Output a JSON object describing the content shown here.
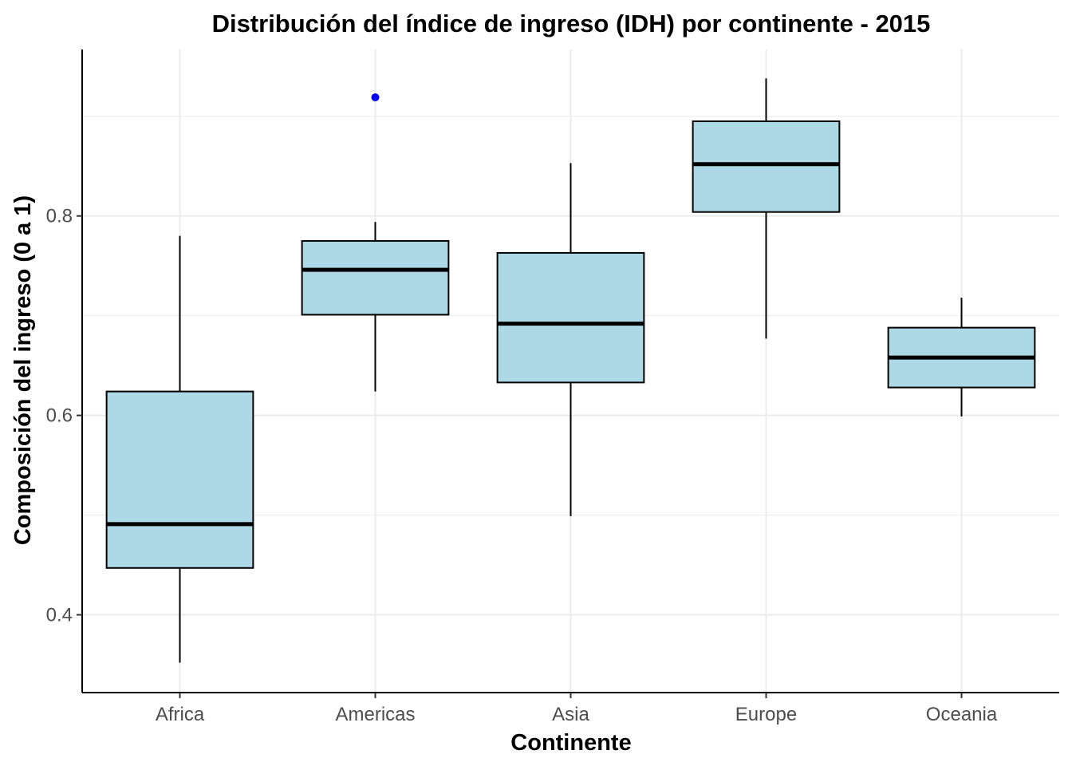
{
  "chart_data": {
    "type": "boxplot",
    "title": "Distribución del índice de ingreso (IDH) por continente - 2015",
    "xlabel": "Continente",
    "ylabel": "Composición del ingreso (0 a 1)",
    "categories": [
      "Africa",
      "Americas",
      "Asia",
      "Europe",
      "Oceania"
    ],
    "boxes": [
      {
        "category": "Africa",
        "whisker_low": 0.352,
        "q1": 0.447,
        "median": 0.491,
        "q3": 0.624,
        "whisker_high": 0.78,
        "outliers": []
      },
      {
        "category": "Americas",
        "whisker_low": 0.624,
        "q1": 0.701,
        "median": 0.746,
        "q3": 0.775,
        "whisker_high": 0.794,
        "outliers": [
          0.919
        ]
      },
      {
        "category": "Asia",
        "whisker_low": 0.499,
        "q1": 0.633,
        "median": 0.692,
        "q3": 0.763,
        "whisker_high": 0.853,
        "outliers": []
      },
      {
        "category": "Europe",
        "whisker_low": 0.677,
        "q1": 0.804,
        "median": 0.852,
        "q3": 0.895,
        "whisker_high": 0.938,
        "outliers": []
      },
      {
        "category": "Oceania",
        "whisker_low": 0.599,
        "q1": 0.628,
        "median": 0.658,
        "q3": 0.688,
        "whisker_high": 0.718,
        "outliers": []
      }
    ],
    "y_ticks": [
      0.4,
      0.6,
      0.8
    ],
    "y_tick_labels": [
      "0.4",
      "0.6",
      "0.8"
    ],
    "ylim": [
      0.322,
      0.967
    ],
    "grid": true,
    "box_fill": "#add8e6",
    "box_stroke": "#000000",
    "outlier_color": "#0000ff",
    "grid_color": "#ebebeb"
  }
}
